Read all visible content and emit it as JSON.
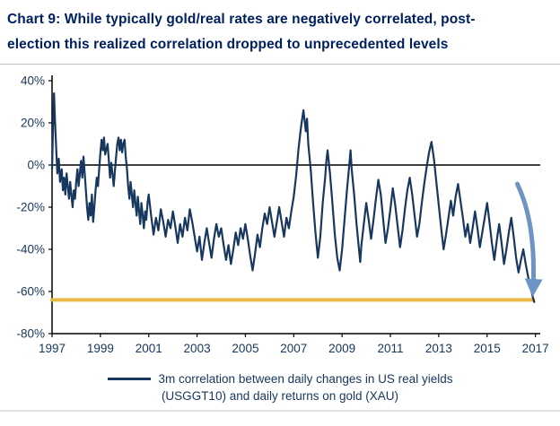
{
  "header": {
    "title_line1": "Chart 9: While typically gold/real rates are negatively correlated, post-",
    "title_line2": "election this realized correlation dropped to unprecedented levels"
  },
  "legend": {
    "line1": "3m correlation between daily changes in US real yields",
    "line2": "(USGGT10) and daily returns on gold (XAU)"
  },
  "colors": {
    "title": "#002060",
    "series": "#17375E",
    "threshold": "#E9B944",
    "arrow": "#6D94C4",
    "axis": "#000000",
    "tick_label": "#17365D"
  },
  "chart_data": {
    "type": "line",
    "title": "Chart 9: While typically gold/real rates are negatively correlated, post-election this realized correlation dropped to unprecedented levels",
    "xlabel": "",
    "ylabel": "",
    "grid": false,
    "legend_position": "bottom",
    "legend_entries": [
      "3m correlation between daily changes in US real yields (USGGT10) and daily returns on gold (XAU)"
    ],
    "xlim": [
      1997,
      2017.2
    ],
    "ylim": [
      -80,
      40
    ],
    "yticks": [
      40,
      20,
      0,
      -20,
      -40,
      -60,
      -80
    ],
    "ytick_labels": [
      "40%",
      "20%",
      "0%",
      "-20%",
      "-40%",
      "-60%",
      "-80%"
    ],
    "xticks": [
      1997,
      1999,
      2001,
      2003,
      2005,
      2007,
      2009,
      2011,
      2013,
      2015,
      2017
    ],
    "threshold_line": {
      "value": -64,
      "color": "#E9B944",
      "x_start": 1997,
      "x_end": 2016.92
    },
    "annotation_arrow": {
      "color": "#6D94C4",
      "from": [
        2016.25,
        -9
      ],
      "control": [
        2017.05,
        -28
      ],
      "to": [
        2016.9,
        -60
      ]
    },
    "series": [
      {
        "name": "3m correlation between daily changes in US real yields (USGGT10) and daily returns on gold (XAU)",
        "color": "#17375E",
        "points": [
          [
            1997.0,
            -2
          ],
          [
            1997.04,
            18
          ],
          [
            1997.08,
            34
          ],
          [
            1997.12,
            22
          ],
          [
            1997.17,
            8
          ],
          [
            1997.22,
            -4
          ],
          [
            1997.28,
            3
          ],
          [
            1997.33,
            -8
          ],
          [
            1997.4,
            -2
          ],
          [
            1997.45,
            -12
          ],
          [
            1997.5,
            -6
          ],
          [
            1997.55,
            -14
          ],
          [
            1997.6,
            -4
          ],
          [
            1997.65,
            -10
          ],
          [
            1997.7,
            -16
          ],
          [
            1997.75,
            -8
          ],
          [
            1997.8,
            -14
          ],
          [
            1997.85,
            -20
          ],
          [
            1997.9,
            -12
          ],
          [
            1997.95,
            -16
          ],
          [
            1998.0,
            -8
          ],
          [
            1998.05,
            -2
          ],
          [
            1998.1,
            -10
          ],
          [
            1998.15,
            -4
          ],
          [
            1998.2,
            2
          ],
          [
            1998.25,
            -6
          ],
          [
            1998.3,
            4
          ],
          [
            1998.35,
            -4
          ],
          [
            1998.4,
            -12
          ],
          [
            1998.45,
            -20
          ],
          [
            1998.5,
            -26
          ],
          [
            1998.55,
            -18
          ],
          [
            1998.6,
            -24
          ],
          [
            1998.65,
            -14
          ],
          [
            1998.7,
            -27
          ],
          [
            1998.75,
            -20
          ],
          [
            1998.8,
            -12
          ],
          [
            1998.85,
            -6
          ],
          [
            1998.9,
            -10
          ],
          [
            1998.95,
            -2
          ],
          [
            1999.0,
            6
          ],
          [
            1999.05,
            12
          ],
          [
            1999.1,
            7
          ],
          [
            1999.15,
            13
          ],
          [
            1999.2,
            5
          ],
          [
            1999.3,
            10
          ],
          [
            1999.35,
            2
          ],
          [
            1999.4,
            -6
          ],
          [
            1999.45,
            1
          ],
          [
            1999.5,
            -4
          ],
          [
            1999.55,
            -10
          ],
          [
            1999.6,
            -3
          ],
          [
            1999.65,
            4
          ],
          [
            1999.7,
            10
          ],
          [
            1999.75,
            13
          ],
          [
            1999.8,
            7
          ],
          [
            1999.85,
            12
          ],
          [
            1999.9,
            6
          ],
          [
            1999.95,
            10
          ],
          [
            2000.0,
            12
          ],
          [
            2000.05,
            4
          ],
          [
            2000.1,
            -2
          ],
          [
            2000.15,
            -10
          ],
          [
            2000.2,
            -16
          ],
          [
            2000.25,
            -8
          ],
          [
            2000.3,
            -14
          ],
          [
            2000.35,
            -20
          ],
          [
            2000.4,
            -12
          ],
          [
            2000.45,
            -18
          ],
          [
            2000.5,
            -24
          ],
          [
            2000.55,
            -15
          ],
          [
            2000.6,
            -22
          ],
          [
            2000.65,
            -28
          ],
          [
            2000.7,
            -18
          ],
          [
            2000.75,
            -24
          ],
          [
            2000.8,
            -30
          ],
          [
            2000.85,
            -22
          ],
          [
            2000.9,
            -26
          ],
          [
            2000.95,
            -18
          ],
          [
            2001.0,
            -14
          ],
          [
            2001.1,
            -24
          ],
          [
            2001.2,
            -33
          ],
          [
            2001.3,
            -25
          ],
          [
            2001.4,
            -31
          ],
          [
            2001.5,
            -21
          ],
          [
            2001.6,
            -27
          ],
          [
            2001.7,
            -34
          ],
          [
            2001.8,
            -26
          ],
          [
            2001.9,
            -30
          ],
          [
            2002.0,
            -22
          ],
          [
            2002.1,
            -29
          ],
          [
            2002.2,
            -37
          ],
          [
            2002.3,
            -28
          ],
          [
            2002.4,
            -34
          ],
          [
            2002.5,
            -25
          ],
          [
            2002.6,
            -31
          ],
          [
            2002.7,
            -21
          ],
          [
            2002.8,
            -27
          ],
          [
            2002.9,
            -34
          ],
          [
            2003.0,
            -41
          ],
          [
            2003.1,
            -34
          ],
          [
            2003.2,
            -45
          ],
          [
            2003.3,
            -37
          ],
          [
            2003.4,
            -30
          ],
          [
            2003.5,
            -37
          ],
          [
            2003.6,
            -44
          ],
          [
            2003.7,
            -35
          ],
          [
            2003.8,
            -28
          ],
          [
            2003.9,
            -34
          ],
          [
            2004.0,
            -30
          ],
          [
            2004.1,
            -38
          ],
          [
            2004.2,
            -45
          ],
          [
            2004.3,
            -38
          ],
          [
            2004.4,
            -47
          ],
          [
            2004.5,
            -40
          ],
          [
            2004.6,
            -32
          ],
          [
            2004.7,
            -38
          ],
          [
            2004.8,
            -30
          ],
          [
            2004.9,
            -35
          ],
          [
            2005.0,
            -28
          ],
          [
            2005.1,
            -35
          ],
          [
            2005.2,
            -43
          ],
          [
            2005.3,
            -50
          ],
          [
            2005.4,
            -42
          ],
          [
            2005.5,
            -33
          ],
          [
            2005.6,
            -39
          ],
          [
            2005.7,
            -30
          ],
          [
            2005.8,
            -23
          ],
          [
            2005.9,
            -28
          ],
          [
            2006.0,
            -20
          ],
          [
            2006.1,
            -27
          ],
          [
            2006.2,
            -34
          ],
          [
            2006.3,
            -27
          ],
          [
            2006.4,
            -20
          ],
          [
            2006.5,
            -27
          ],
          [
            2006.6,
            -34
          ],
          [
            2006.7,
            -25
          ],
          [
            2006.8,
            -30
          ],
          [
            2006.9,
            -22
          ],
          [
            2007.0,
            -15
          ],
          [
            2007.1,
            -5
          ],
          [
            2007.2,
            8
          ],
          [
            2007.3,
            18
          ],
          [
            2007.4,
            26
          ],
          [
            2007.5,
            16
          ],
          [
            2007.55,
            22
          ],
          [
            2007.6,
            10
          ],
          [
            2007.7,
            -2
          ],
          [
            2007.8,
            -18
          ],
          [
            2007.9,
            -32
          ],
          [
            2008.0,
            -44
          ],
          [
            2008.1,
            -34
          ],
          [
            2008.2,
            -18
          ],
          [
            2008.3,
            -6
          ],
          [
            2008.35,
            2
          ],
          [
            2008.4,
            7
          ],
          [
            2008.5,
            -4
          ],
          [
            2008.6,
            -18
          ],
          [
            2008.7,
            -33
          ],
          [
            2008.8,
            -44
          ],
          [
            2008.9,
            -50
          ],
          [
            2009.0,
            -40
          ],
          [
            2009.1,
            -26
          ],
          [
            2009.2,
            -12
          ],
          [
            2009.3,
            0
          ],
          [
            2009.35,
            7
          ],
          [
            2009.4,
            -2
          ],
          [
            2009.5,
            -14
          ],
          [
            2009.6,
            -28
          ],
          [
            2009.7,
            -40
          ],
          [
            2009.75,
            -46
          ],
          [
            2009.8,
            -38
          ],
          [
            2009.9,
            -28
          ],
          [
            2010.0,
            -18
          ],
          [
            2010.1,
            -26
          ],
          [
            2010.2,
            -35
          ],
          [
            2010.3,
            -26
          ],
          [
            2010.4,
            -16
          ],
          [
            2010.5,
            -7
          ],
          [
            2010.6,
            -14
          ],
          [
            2010.7,
            -26
          ],
          [
            2010.8,
            -37
          ],
          [
            2010.9,
            -30
          ],
          [
            2011.0,
            -21
          ],
          [
            2011.1,
            -11
          ],
          [
            2011.2,
            -19
          ],
          [
            2011.3,
            -29
          ],
          [
            2011.4,
            -39
          ],
          [
            2011.5,
            -31
          ],
          [
            2011.6,
            -21
          ],
          [
            2011.7,
            -12
          ],
          [
            2011.8,
            -6
          ],
          [
            2011.9,
            -14
          ],
          [
            2012.0,
            -24
          ],
          [
            2012.1,
            -34
          ],
          [
            2012.2,
            -28
          ],
          [
            2012.3,
            -18
          ],
          [
            2012.4,
            -9
          ],
          [
            2012.5,
            -1
          ],
          [
            2012.6,
            6
          ],
          [
            2012.7,
            11
          ],
          [
            2012.8,
            3
          ],
          [
            2012.9,
            -8
          ],
          [
            2013.0,
            -19
          ],
          [
            2013.1,
            -30
          ],
          [
            2013.2,
            -40
          ],
          [
            2013.3,
            -33
          ],
          [
            2013.4,
            -25
          ],
          [
            2013.5,
            -17
          ],
          [
            2013.6,
            -24
          ],
          [
            2013.7,
            -15
          ],
          [
            2013.8,
            -9
          ],
          [
            2013.9,
            -17
          ],
          [
            2014.0,
            -25
          ],
          [
            2014.1,
            -34
          ],
          [
            2014.2,
            -28
          ],
          [
            2014.3,
            -37
          ],
          [
            2014.4,
            -30
          ],
          [
            2014.5,
            -22
          ],
          [
            2014.6,
            -30
          ],
          [
            2014.7,
            -39
          ],
          [
            2014.8,
            -32
          ],
          [
            2014.9,
            -25
          ],
          [
            2015.0,
            -18
          ],
          [
            2015.1,
            -27
          ],
          [
            2015.2,
            -37
          ],
          [
            2015.3,
            -45
          ],
          [
            2015.4,
            -36
          ],
          [
            2015.5,
            -28
          ],
          [
            2015.6,
            -37
          ],
          [
            2015.7,
            -47
          ],
          [
            2015.8,
            -40
          ],
          [
            2015.9,
            -32
          ],
          [
            2016.0,
            -25
          ],
          [
            2016.1,
            -34
          ],
          [
            2016.2,
            -44
          ],
          [
            2016.3,
            -51
          ],
          [
            2016.4,
            -45
          ],
          [
            2016.5,
            -40
          ],
          [
            2016.6,
            -47
          ],
          [
            2016.7,
            -53
          ],
          [
            2016.8,
            -58
          ],
          [
            2016.9,
            -63
          ],
          [
            2016.95,
            -65
          ]
        ]
      }
    ]
  }
}
